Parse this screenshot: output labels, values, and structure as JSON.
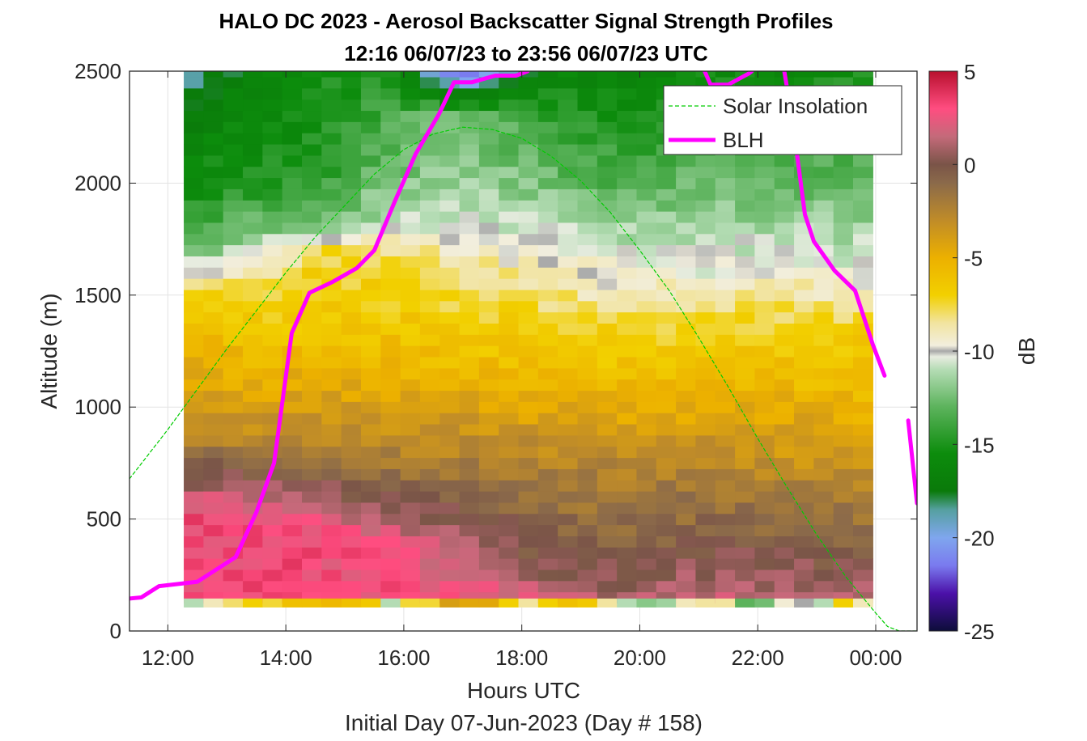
{
  "chart_data": {
    "type": "heatmap",
    "title": "HALO DC 2023 - Aerosol Backscatter Signal Strength Profiles",
    "subtitle": "12:16 06/07/23 to 23:56 06/07/23  UTC",
    "xlabel": "Hours UTC",
    "ylabel": "Altitude (m)",
    "footer": "Initial Day 07-Jun-2023 (Day # 158)",
    "x_range_hours": [
      11.35,
      24.7
    ],
    "y_range": [
      0,
      2500
    ],
    "grid": true,
    "x_ticks": [
      {
        "value": 12,
        "label": "12:00"
      },
      {
        "value": 14,
        "label": "14:00"
      },
      {
        "value": 16,
        "label": "16:00"
      },
      {
        "value": 18,
        "label": "18:00"
      },
      {
        "value": 20,
        "label": "20:00"
      },
      {
        "value": 22,
        "label": "22:00"
      },
      {
        "value": 24,
        "label": "00:00"
      }
    ],
    "y_ticks": [
      {
        "value": 0,
        "label": "0"
      },
      {
        "value": 500,
        "label": "500"
      },
      {
        "value": 1000,
        "label": "1000"
      },
      {
        "value": 1500,
        "label": "1500"
      },
      {
        "value": 2000,
        "label": "2000"
      },
      {
        "value": 2500,
        "label": "2500"
      }
    ],
    "colorbar": {
      "label": "dB",
      "range": [
        -25,
        5
      ],
      "ticks": [
        {
          "value": 5,
          "label": "5"
        },
        {
          "value": 0,
          "label": "0"
        },
        {
          "value": -5,
          "label": "-5"
        },
        {
          "value": -10,
          "label": "-10"
        },
        {
          "value": -15,
          "label": "-15"
        },
        {
          "value": -20,
          "label": "-20"
        },
        {
          "value": -25,
          "label": "-25"
        }
      ],
      "colormap": [
        [
          -25,
          "#0d0d3a"
        ],
        [
          -23,
          "#4b10a8"
        ],
        [
          -21.5,
          "#7a7aef"
        ],
        [
          -20,
          "#7fa6ee"
        ],
        [
          -18.5,
          "#55a0a0"
        ],
        [
          -17.5,
          "#0a7a0a"
        ],
        [
          -15.5,
          "#0c8c0c"
        ],
        [
          -13,
          "#5cb35c"
        ],
        [
          -11,
          "#b4dcb4"
        ],
        [
          -10.3,
          "#e8ece0"
        ],
        [
          -10,
          "#a8a8a8"
        ],
        [
          -9.7,
          "#f2eede"
        ],
        [
          -8.5,
          "#f2e4a0"
        ],
        [
          -7,
          "#f2d000"
        ],
        [
          -5,
          "#ecb000"
        ],
        [
          -3,
          "#c08c28"
        ],
        [
          -1,
          "#8b6a4a"
        ],
        [
          0,
          "#7a5448"
        ],
        [
          1.5,
          "#c46a7a"
        ],
        [
          3,
          "#ff4d80"
        ],
        [
          5,
          "#b8102e"
        ]
      ]
    },
    "heatmap": {
      "x_start_hours": 12.27,
      "x_end_hours": 23.95,
      "columns": 35,
      "altitude_bins_m": [
        150,
        200,
        250,
        300,
        350,
        400,
        450,
        500,
        550,
        600,
        650,
        700,
        750,
        800,
        850,
        900,
        950,
        1000,
        1050,
        1100,
        1150,
        1200,
        1250,
        1300,
        1350,
        1400,
        1450,
        1500,
        1550,
        1600,
        1650,
        1700,
        1750,
        1800,
        1850,
        1900,
        1950,
        2000,
        2050,
        2100,
        2150,
        2200,
        2250,
        2300,
        2350,
        2400,
        2450,
        2500
      ],
      "profiles": [
        {
          "time": 12.27,
          "anchors": [
            [
              150,
              3.0
            ],
            [
              500,
              3.0
            ],
            [
              650,
              1.0
            ],
            [
              900,
              -3.0
            ],
            [
              1300,
              -5.5
            ],
            [
              1500,
              -7.0
            ],
            [
              1600,
              -9.7
            ],
            [
              1700,
              -13.0
            ],
            [
              2000,
              -15.5
            ],
            [
              2300,
              -17.0
            ],
            [
              2500,
              -18.5
            ]
          ]
        },
        {
          "time": 13.5,
          "anchors": [
            [
              150,
              3.0
            ],
            [
              500,
              3.2
            ],
            [
              650,
              0.5
            ],
            [
              900,
              -3.5
            ],
            [
              1300,
              -6.0
            ],
            [
              1600,
              -8.5
            ],
            [
              1750,
              -11.5
            ],
            [
              2000,
              -15.0
            ],
            [
              2500,
              -16.5
            ]
          ]
        },
        {
          "time": 14.5,
          "anchors": [
            [
              150,
              3.0
            ],
            [
              450,
              3.0
            ],
            [
              600,
              0.8
            ],
            [
              900,
              -3.0
            ],
            [
              1300,
              -6.0
            ],
            [
              1700,
              -7.5
            ],
            [
              1800,
              -13.0
            ],
            [
              2100,
              -15.0
            ],
            [
              2500,
              -15.5
            ]
          ]
        },
        {
          "time": 15.7,
          "anchors": [
            [
              150,
              3.0
            ],
            [
              400,
              2.5
            ],
            [
              550,
              0.5
            ],
            [
              900,
              -3.5
            ],
            [
              1300,
              -6.0
            ],
            [
              1700,
              -8.0
            ],
            [
              1850,
              -11.0
            ],
            [
              2100,
              -13.0
            ],
            [
              2500,
              -14.5
            ]
          ]
        },
        {
          "time": 17.0,
          "anchors": [
            [
              150,
              2.5
            ],
            [
              300,
              2.0
            ],
            [
              500,
              0.0
            ],
            [
              900,
              -3.5
            ],
            [
              1300,
              -6.5
            ],
            [
              1650,
              -8.5
            ],
            [
              1800,
              -10.3
            ],
            [
              2000,
              -11.5
            ],
            [
              2300,
              -12.5
            ],
            [
              2450,
              -20.5
            ],
            [
              2500,
              -22.5
            ]
          ]
        },
        {
          "time": 18.5,
          "anchors": [
            [
              150,
              1.5
            ],
            [
              350,
              -0.5
            ],
            [
              700,
              -2.0
            ],
            [
              1000,
              -4.5
            ],
            [
              1300,
              -6.5
            ],
            [
              1600,
              -9.0
            ],
            [
              1700,
              -10.0
            ],
            [
              2000,
              -12.5
            ],
            [
              2500,
              -16.0
            ]
          ]
        },
        {
          "time": 19.8,
          "anchors": [
            [
              150,
              1.0
            ],
            [
              350,
              -0.5
            ],
            [
              750,
              -2.5
            ],
            [
              1000,
              -5.0
            ],
            [
              1300,
              -7.0
            ],
            [
              1500,
              -9.0
            ],
            [
              1650,
              -10.0
            ],
            [
              2000,
              -13.5
            ],
            [
              2500,
              -16.5
            ]
          ]
        },
        {
          "time": 21.2,
          "anchors": [
            [
              150,
              1.5
            ],
            [
              350,
              0.0
            ],
            [
              800,
              -3.0
            ],
            [
              1100,
              -5.5
            ],
            [
              1400,
              -7.5
            ],
            [
              1600,
              -10.0
            ],
            [
              2000,
              -12.5
            ],
            [
              2500,
              -15.5
            ]
          ]
        },
        {
          "time": 22.5,
          "anchors": [
            [
              150,
              1.5
            ],
            [
              300,
              0.2
            ],
            [
              800,
              -3.5
            ],
            [
              1100,
              -5.5
            ],
            [
              1350,
              -7.0
            ],
            [
              1550,
              -9.0
            ],
            [
              1650,
              -10.0
            ],
            [
              2000,
              -13.0
            ],
            [
              2500,
              -16.0
            ]
          ]
        },
        {
          "time": 23.95,
          "anchors": [
            [
              150,
              1.5
            ],
            [
              300,
              0.0
            ],
            [
              800,
              -4.0
            ],
            [
              1100,
              -5.8
            ],
            [
              1350,
              -7.0
            ],
            [
              1550,
              -9.5
            ],
            [
              1700,
              -11.0
            ],
            [
              2000,
              -12.5
            ],
            [
              2500,
              -15.0
            ]
          ]
        }
      ],
      "near_surface_row": {
        "altitude_m": 125,
        "values_db": [
          -11.0,
          -9.0,
          -8.0,
          -7.0,
          -7.5,
          -6.0,
          -6.0,
          -5.5,
          -6.0,
          -6.5,
          -11.0,
          -7.5,
          -7.5,
          -4.0,
          -4.5,
          -4.5,
          -7.0,
          -8.5,
          -7.0,
          -6.0,
          -6.5,
          -8.5,
          -11.0,
          -12.0,
          -11.5,
          -9.0,
          -8.5,
          -8.5,
          -13.0,
          -12.5,
          -9.5,
          -10.0,
          -11.0,
          -7.0,
          -9.0
        ]
      }
    },
    "series": [
      {
        "name": "Solar Insolation",
        "style": "dashed",
        "color": "#00cc00",
        "x": [
          11.35,
          11.5,
          12.0,
          12.5,
          13.0,
          13.5,
          14.0,
          14.5,
          15.0,
          15.5,
          16.0,
          16.5,
          17.0,
          17.5,
          18.0,
          18.5,
          19.0,
          19.5,
          20.0,
          20.5,
          21.0,
          21.5,
          22.0,
          22.5,
          23.0,
          23.5,
          24.0,
          24.2,
          24.4,
          24.5,
          24.6,
          24.7
        ],
        "y": [
          680,
          730,
          900,
          1080,
          1260,
          1430,
          1600,
          1760,
          1900,
          2040,
          2150,
          2220,
          2250,
          2240,
          2200,
          2120,
          2010,
          1870,
          1700,
          1520,
          1310,
          1090,
          860,
          640,
          430,
          240,
          80,
          20,
          0,
          0,
          0,
          0
        ]
      },
      {
        "name": "BLH",
        "style": "solid",
        "color": "#ff00ff",
        "segments": [
          {
            "x": [
              11.35,
              11.55,
              11.85,
              12.5,
              13.15,
              13.5,
              13.8,
              14.1,
              14.4,
              14.8,
              15.2,
              15.5,
              15.85,
              16.2,
              16.6,
              16.85,
              17.15,
              17.55,
              17.9,
              18.1
            ],
            "y": [
              145,
              150,
              200,
              220,
              330,
              530,
              750,
              1330,
              1510,
              1560,
              1620,
              1700,
              1920,
              2130,
              2310,
              2450,
              2450,
              2480,
              2480,
              2500
            ]
          },
          {
            "x": [
              21.1,
              21.2,
              21.5,
              21.85,
              21.9
            ],
            "y": [
              2500,
              2440,
              2440,
              2490,
              2500
            ]
          },
          {
            "x": [
              22.45,
              22.6,
              22.8,
              22.95,
              23.3,
              23.65,
              23.95,
              24.15
            ],
            "y": [
              2500,
              2260,
              1860,
              1740,
              1610,
              1520,
              1280,
              1140
            ]
          },
          {
            "x": [
              24.55,
              24.7
            ],
            "y": [
              940,
              570
            ]
          }
        ]
      }
    ],
    "legend": {
      "position": "top-right",
      "entries": [
        "Solar Insolation",
        "BLH"
      ]
    }
  }
}
